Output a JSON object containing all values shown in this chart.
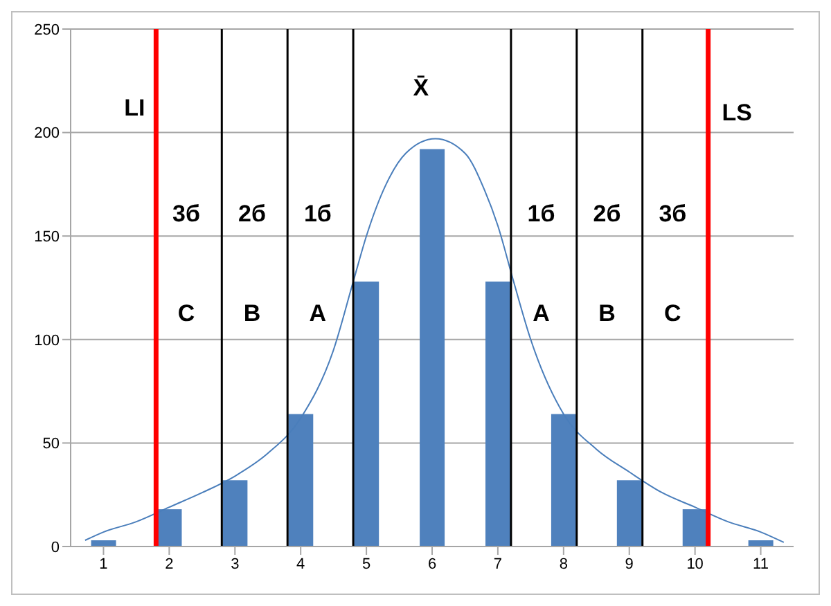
{
  "chart_data": {
    "type": "bar",
    "x": [
      1,
      2,
      3,
      4,
      5,
      6,
      7,
      8,
      9,
      10,
      11
    ],
    "values": [
      3,
      18,
      32,
      64,
      128,
      192,
      128,
      64,
      32,
      18,
      3
    ],
    "color": "#4f81bd",
    "series": [
      {
        "type": "line",
        "color": "#4a7ebb",
        "x": [
          0.72,
          1,
          1.5,
          2,
          2.5,
          3,
          3.5,
          4,
          4.5,
          4.8,
          5,
          5.3,
          5.6,
          6.05,
          6.5,
          6.8,
          7,
          7.24,
          7.5,
          8,
          8.5,
          9,
          9.5,
          10,
          10.5,
          11,
          11.35
        ],
        "values": [
          3,
          7,
          12,
          19,
          26,
          34,
          45,
          62,
          95,
          128,
          150,
          175,
          190,
          197,
          190,
          172,
          155,
          128,
          100,
          64,
          47,
          36,
          26,
          19,
          12,
          7,
          2
        ]
      }
    ],
    "xlim": [
      0.5,
      11.5
    ],
    "xticks": [
      1,
      2,
      3,
      4,
      5,
      6,
      7,
      8,
      9,
      10,
      11
    ],
    "ylim": [
      0,
      250
    ],
    "yticks": [
      0,
      50,
      100,
      150,
      200,
      250
    ],
    "grid": "y",
    "legend": false,
    "marker": "none",
    "ref_lines": [
      {
        "axis": "x",
        "value": 1.8,
        "color": "#ff0000",
        "label": "LI"
      },
      {
        "axis": "x",
        "value": 2.8,
        "color": "#000000"
      },
      {
        "axis": "x",
        "value": 3.8,
        "color": "#000000"
      },
      {
        "axis": "x",
        "value": 4.8,
        "color": "#000000"
      },
      {
        "axis": "x",
        "value": 7.2,
        "color": "#000000"
      },
      {
        "axis": "x",
        "value": 8.2,
        "color": "#000000"
      },
      {
        "axis": "x",
        "value": 9.2,
        "color": "#000000"
      },
      {
        "axis": "x",
        "value": 10.2,
        "color": "#ff0000",
        "label": "LS"
      }
    ],
    "annotations": [
      "X̄",
      "3б",
      "2б",
      "1б",
      "1б",
      "2б",
      "3б",
      "C",
      "B",
      "A",
      "A",
      "B",
      "C"
    ]
  }
}
